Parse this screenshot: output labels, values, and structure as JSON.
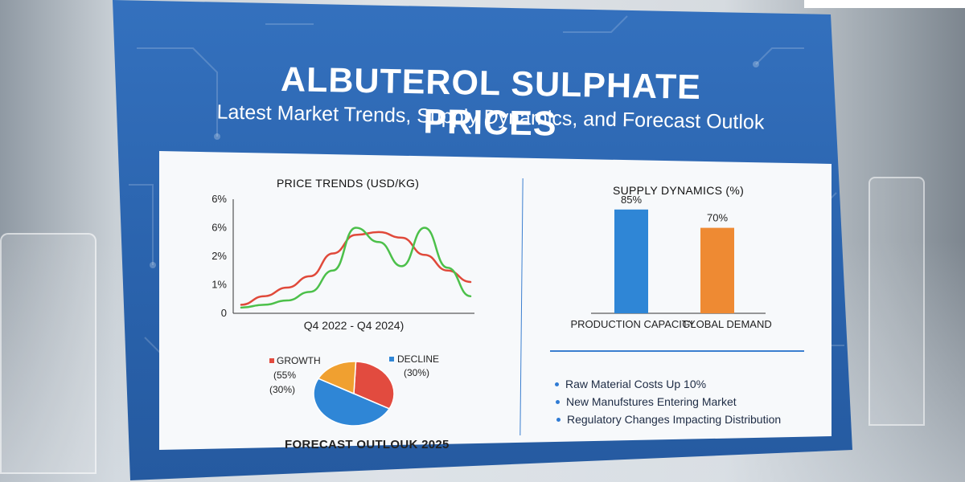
{
  "title": "ALBUTEROL SULPHATE PRICES",
  "subtitle": "Latest Market Trends, Supply Dynamics, and Forecast Outlok",
  "colors": {
    "board": "#2f6bb8",
    "red_series": "#e0493a",
    "green_series": "#4cc04a",
    "bar_blue": "#2f86d6",
    "bar_orange": "#ee8a33",
    "pie_red": "#e24b3f",
    "pie_blue": "#2f86d6",
    "pie_orange": "#f0a030"
  },
  "bullets": [
    "Raw Material Costs Up 10%",
    "New Manufstures Entering Market",
    "Regulatory Changes Impacting Distribution"
  ],
  "chart_data": [
    {
      "type": "line",
      "title": "PRICE TRENDS (USD/KG)",
      "xlabel": "Q4 2022 - Q4 2024)",
      "y_ticks": [
        "6%",
        "6%",
        "2%",
        "1%",
        "0"
      ],
      "ylim": [
        0,
        8
      ],
      "x": [
        0,
        1,
        2,
        3,
        4,
        5,
        6,
        7,
        8,
        9,
        10
      ],
      "series": [
        {
          "color": "#e0493a",
          "values": [
            0.6,
            1.2,
            1.8,
            2.6,
            4.2,
            5.5,
            5.7,
            5.3,
            4.1,
            3.0,
            2.2
          ]
        },
        {
          "color": "#4cc04a",
          "values": [
            0.4,
            0.6,
            0.9,
            1.5,
            3.0,
            6.0,
            5.0,
            3.3,
            6.0,
            3.2,
            1.2
          ]
        }
      ],
      "grid": false
    },
    {
      "type": "bar",
      "title": "SUPPLY DYNAMICS (%)",
      "categories": [
        "PRODUCTION CAPACITY",
        "GLOBAL DEMAND"
      ],
      "values": [
        85,
        70
      ],
      "value_labels": [
        "85%",
        "70%"
      ],
      "colors": [
        "#2f86d6",
        "#ee8a33"
      ],
      "ylim": [
        0,
        100
      ]
    },
    {
      "type": "pie",
      "title": "FORECAST OUTLOUK 2025",
      "slices": [
        {
          "value": 32,
          "color": "#e24b3f"
        },
        {
          "value": 50,
          "color": "#2f86d6"
        },
        {
          "value": 18,
          "color": "#f0a030"
        }
      ],
      "annotations": {
        "growth_label": "GROWTH",
        "growth_value": "(55%",
        "left_value": "(30%)",
        "decline_label": "DECLINE",
        "decline_value": "(30%)"
      }
    }
  ]
}
